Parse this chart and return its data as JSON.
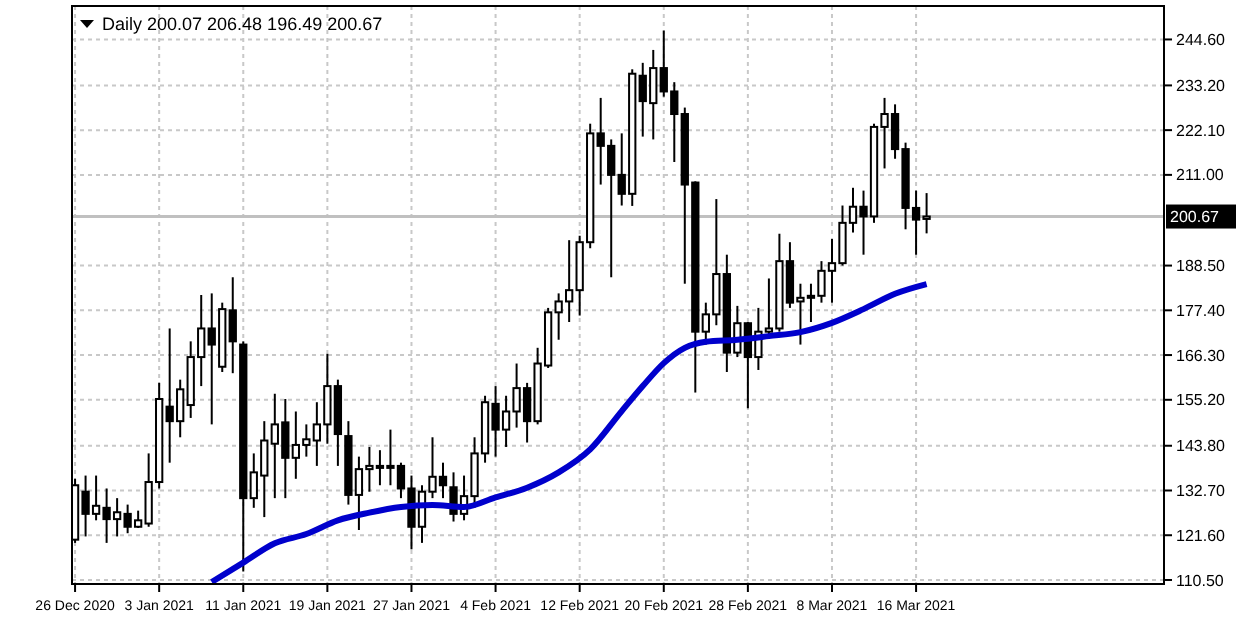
{
  "chart_data": {
    "type": "candlestick",
    "title": "Daily 200.07 206.48 196.49 200.67",
    "xlim": [
      "2020-12-25T17:00",
      "2021-04-08T14:00"
    ],
    "xticks": [
      {
        "value": "2020-12-26",
        "label": "26 Dec 2020"
      },
      {
        "value": "2021-01-03",
        "label": "3 Jan 2021"
      },
      {
        "value": "2021-01-11",
        "label": "11 Jan 2021"
      },
      {
        "value": "2021-01-19",
        "label": "19 Jan 2021"
      },
      {
        "value": "2021-01-27",
        "label": "27 Jan 2021"
      },
      {
        "value": "2021-02-04",
        "label": "4 Feb 2021"
      },
      {
        "value": "2021-02-12",
        "label": "12 Feb 2021"
      },
      {
        "value": "2021-02-20",
        "label": "20 Feb 2021"
      },
      {
        "value": "2021-02-28",
        "label": "28 Feb 2021"
      },
      {
        "value": "2021-03-08",
        "label": "8 Mar 2021"
      },
      {
        "value": "2021-03-16",
        "label": "16 Mar 2021"
      }
    ],
    "ylim": [
      109.5,
      252.9
    ],
    "yticks": [
      {
        "value": 110.5,
        "label": "110.50"
      },
      {
        "value": 121.6,
        "label": "121.60"
      },
      {
        "value": 132.7,
        "label": "132.70"
      },
      {
        "value": 143.8,
        "label": "143.80"
      },
      {
        "value": 155.2,
        "label": "155.20"
      },
      {
        "value": 166.3,
        "label": "166.30"
      },
      {
        "value": 177.4,
        "label": "177.40"
      },
      {
        "value": 188.5,
        "label": "188.50"
      },
      {
        "value": 211,
        "label": "211.00"
      },
      {
        "value": 222.1,
        "label": "222.10"
      },
      {
        "value": 233.2,
        "label": "233.20"
      },
      {
        "value": 244.6,
        "label": "244.60"
      }
    ],
    "grid": true,
    "ref_lines": [
      {
        "axis": "y",
        "value": 200.67,
        "label": "200.67",
        "color": "#c0c0c0"
      }
    ],
    "series": [
      {
        "type": "candlestick",
        "color": "#000000",
        "x": [
          "2020-12-26",
          "2020-12-27",
          "2020-12-28",
          "2020-12-29",
          "2020-12-30",
          "2020-12-31",
          "2021-01-01",
          "2021-01-02",
          "2021-01-03",
          "2021-01-04",
          "2021-01-05",
          "2021-01-06",
          "2021-01-07",
          "2021-01-08",
          "2021-01-09",
          "2021-01-10",
          "2021-01-11",
          "2021-01-12",
          "2021-01-13",
          "2021-01-14",
          "2021-01-15",
          "2021-01-16",
          "2021-01-17",
          "2021-01-18",
          "2021-01-19",
          "2021-01-20",
          "2021-01-21",
          "2021-01-22",
          "2021-01-23",
          "2021-01-24",
          "2021-01-25",
          "2021-01-26",
          "2021-01-27",
          "2021-01-28",
          "2021-01-29",
          "2021-01-30",
          "2021-01-31",
          "2021-02-01",
          "2021-02-02",
          "2021-02-03",
          "2021-02-04",
          "2021-02-05",
          "2021-02-06",
          "2021-02-07",
          "2021-02-08",
          "2021-02-09",
          "2021-02-10",
          "2021-02-11",
          "2021-02-12",
          "2021-02-13",
          "2021-02-14",
          "2021-02-15",
          "2021-02-16",
          "2021-02-17",
          "2021-02-18",
          "2021-02-19",
          "2021-02-20",
          "2021-02-21",
          "2021-02-22",
          "2021-02-23",
          "2021-02-24",
          "2021-02-25",
          "2021-02-26",
          "2021-02-27",
          "2021-02-28",
          "2021-03-01",
          "2021-03-02",
          "2021-03-03",
          "2021-03-04",
          "2021-03-05",
          "2021-03-06",
          "2021-03-07",
          "2021-03-08",
          "2021-03-09",
          "2021-03-10",
          "2021-03-11",
          "2021-03-12",
          "2021-03-13",
          "2021-03-14",
          "2021-03-15",
          "2021-03-16",
          "2021-03-17"
        ],
        "ohlc": [
          [
            120.5,
            135.6,
            119.7,
            134.0
          ],
          [
            132.4,
            136.4,
            121.3,
            126.9
          ],
          [
            126.9,
            136.4,
            125.3,
            128.9
          ],
          [
            128.4,
            133.2,
            119.7,
            125.6
          ],
          [
            125.6,
            130.8,
            121.3,
            127.3
          ],
          [
            126.9,
            129.2,
            122.1,
            123.7
          ],
          [
            123.7,
            127.7,
            123.4,
            125.3
          ],
          [
            124.5,
            141.9,
            123.7,
            134.8
          ],
          [
            134.8,
            159.4,
            133.2,
            155.4
          ],
          [
            153.5,
            172.9,
            139.6,
            149.9
          ],
          [
            149.9,
            160.2,
            145.9,
            157.8
          ],
          [
            153.9,
            169.7,
            150.7,
            165.8
          ],
          [
            165.8,
            181.2,
            158.6,
            172.9
          ],
          [
            172.9,
            181.6,
            149.1,
            168.9
          ],
          [
            163.4,
            179.3,
            162.1,
            177.7
          ],
          [
            177.4,
            185.6,
            161.8,
            169.7
          ],
          [
            168.9,
            169.7,
            112.6,
            130.8
          ],
          [
            130.8,
            141.9,
            128.4,
            137.2
          ],
          [
            136.4,
            149.9,
            126.1,
            145.1
          ],
          [
            144.3,
            156.7,
            130.8,
            149.1
          ],
          [
            149.6,
            155.4,
            130.8,
            140.8
          ],
          [
            140.8,
            152.3,
            135.6,
            144.0
          ],
          [
            144.0,
            149.1,
            141.1,
            145.4
          ],
          [
            145.1,
            154.6,
            138.8,
            149.1
          ],
          [
            149.1,
            166.6,
            144.3,
            158.6
          ],
          [
            158.6,
            160.2,
            138.8,
            146.7
          ],
          [
            146.2,
            149.9,
            129.2,
            131.6
          ],
          [
            131.6,
            141.1,
            122.9,
            138.0
          ],
          [
            138.0,
            143.5,
            132.4,
            138.8
          ],
          [
            138.3,
            142.7,
            134.0,
            138.8
          ],
          [
            138.6,
            147.8,
            134.0,
            138.8
          ],
          [
            138.8,
            139.6,
            130.8,
            133.2
          ],
          [
            133.2,
            136.4,
            118.1,
            123.7
          ],
          [
            123.7,
            134.0,
            119.7,
            132.4
          ],
          [
            132.4,
            145.9,
            130.8,
            136.1
          ],
          [
            136.1,
            139.6,
            130.8,
            134.0
          ],
          [
            133.5,
            137.2,
            125.0,
            126.9
          ],
          [
            126.9,
            136.4,
            125.3,
            131.3
          ],
          [
            131.3,
            145.9,
            128.4,
            141.9
          ],
          [
            141.9,
            156.2,
            139.6,
            154.6
          ],
          [
            154.2,
            158.6,
            141.1,
            147.8
          ],
          [
            147.8,
            156.2,
            143.5,
            152.3
          ],
          [
            152.3,
            164.2,
            148.3,
            158.1
          ],
          [
            158.1,
            159.4,
            144.6,
            149.9
          ],
          [
            149.9,
            168.1,
            149.1,
            164.2
          ],
          [
            163.7,
            178.0,
            163.1,
            176.9
          ],
          [
            176.9,
            181.6,
            170.1,
            179.6
          ],
          [
            179.6,
            194.8,
            174.5,
            182.4
          ],
          [
            182.4,
            195.9,
            176.1,
            194.3
          ],
          [
            194.3,
            223.7,
            192.8,
            221.3
          ],
          [
            221.3,
            230.1,
            208.6,
            218.2
          ],
          [
            218.2,
            219.8,
            185.6,
            211.0
          ],
          [
            211.0,
            221.3,
            203.4,
            206.3
          ],
          [
            206.3,
            237.2,
            203.3,
            236.1
          ],
          [
            235.6,
            238.8,
            220.5,
            229.3
          ],
          [
            228.8,
            242.0,
            219.8,
            237.5
          ],
          [
            237.5,
            246.8,
            230.4,
            231.7
          ],
          [
            231.7,
            234.0,
            214.2,
            226.1
          ],
          [
            226.1,
            227.7,
            184.0,
            208.6
          ],
          [
            209.1,
            209.4,
            157.0,
            172.1
          ],
          [
            172.1,
            179.3,
            168.9,
            176.4
          ],
          [
            176.4,
            205.0,
            173.7,
            186.4
          ],
          [
            186.4,
            191.2,
            162.1,
            166.9
          ],
          [
            166.9,
            178.5,
            165.8,
            174.2
          ],
          [
            174.2,
            174.5,
            153.1,
            165.8
          ],
          [
            165.8,
            178.0,
            162.6,
            172.1
          ],
          [
            172.1,
            185.3,
            171.3,
            172.9
          ],
          [
            172.9,
            196.4,
            172.1,
            189.6
          ],
          [
            189.6,
            194.3,
            178.0,
            179.3
          ],
          [
            179.6,
            184.0,
            168.9,
            180.5
          ],
          [
            180.5,
            184.0,
            174.5,
            181.0
          ],
          [
            181.0,
            189.6,
            179.3,
            187.2
          ],
          [
            187.2,
            195.1,
            179.3,
            189.1
          ],
          [
            189.1,
            203.4,
            188.5,
            199.1
          ],
          [
            199.1,
            207.8,
            196.7,
            203.1
          ],
          [
            203.1,
            207.1,
            191.2,
            200.7
          ],
          [
            200.7,
            223.7,
            199.1,
            222.9
          ],
          [
            222.9,
            230.1,
            212.6,
            226.1
          ],
          [
            226.1,
            228.5,
            215.0,
            217.4
          ],
          [
            217.4,
            219.0,
            197.5,
            202.8
          ],
          [
            202.8,
            207.1,
            191.2,
            199.9
          ],
          [
            200.07,
            206.48,
            196.49,
            200.67
          ]
        ]
      },
      {
        "type": "line",
        "color": "#0000cc",
        "x": [
          "2021-01-08",
          "2021-01-11",
          "2021-01-14",
          "2021-01-17",
          "2021-01-20",
          "2021-01-23",
          "2021-01-26",
          "2021-01-29",
          "2021-02-01",
          "2021-02-04",
          "2021-02-07",
          "2021-02-10",
          "2021-02-13",
          "2021-02-16",
          "2021-02-18",
          "2021-02-20",
          "2021-02-22",
          "2021-02-24",
          "2021-02-27",
          "2021-03-02",
          "2021-03-05",
          "2021-03-08",
          "2021-03-11",
          "2021-03-14",
          "2021-03-17"
        ],
        "values": [
          110.0,
          114.8,
          119.6,
          121.9,
          125.3,
          127.2,
          128.6,
          129.1,
          128.6,
          131.0,
          133.4,
          137.2,
          142.9,
          152.4,
          158.6,
          164.3,
          168.1,
          169.6,
          170.1,
          171.0,
          172.0,
          174.3,
          177.7,
          181.5,
          183.9
        ]
      }
    ]
  }
}
